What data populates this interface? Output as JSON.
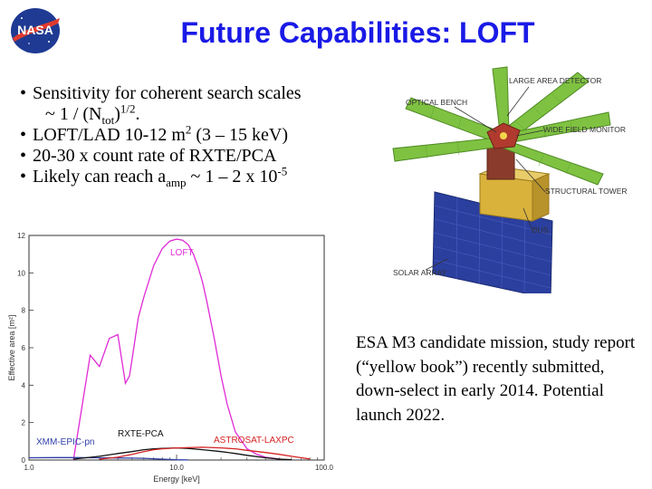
{
  "slide": {
    "title": "Future Capabilities: LOFT",
    "logo_text": "NASA",
    "bullets": [
      {
        "parts": {
          "a": "Sensitivity for coherent search scales",
          "b": "~ 1 / (N",
          "sub": "tot",
          "c": ")",
          "sup": "1/2",
          "d": "."
        }
      },
      {
        "parts": {
          "a": "LOFT/LAD 10-12 m",
          "sup": "2",
          "b": " (3 – 15 keV)"
        }
      },
      {
        "parts": {
          "a": "20-30 x count rate of RXTE/PCA"
        }
      },
      {
        "parts": {
          "a": "Likely can reach a",
          "sub": "amp",
          "b": " ~ 1 – 2 x 10",
          "sup": "-5"
        }
      }
    ],
    "caption": "ESA M3 candidate mission, study report (“yellow book”) recently submitted, down-select in early 2014.  Potential launch 2022."
  },
  "spacecraft": {
    "labels": {
      "lad": "LARGE AREA DETECTOR",
      "optical_bench": "OPTICAL BENCH",
      "wfm": "WIDE FIELD MONITOR",
      "tower": "STRUCTURAL TOWER",
      "bus": "BUS",
      "solar": "SOLAR ARRAY"
    },
    "colors": {
      "panel": "#7fc241",
      "tower": "#8a3b2c",
      "bus": "#d9b23c",
      "solar": "#2b3f9e"
    }
  },
  "chart_data": {
    "type": "line",
    "xlabel": "Energy  [keV]",
    "ylabel": "Effective area  [m²]",
    "xscale": "log",
    "xlim": [
      1,
      100
    ],
    "ylim": [
      0,
      12
    ],
    "xticks": [
      "1.0",
      "10.0",
      "100.0"
    ],
    "yticks": [
      "0",
      "2",
      "4",
      "6",
      "8",
      "10",
      "12"
    ],
    "series": [
      {
        "name": "LOFT",
        "color": "#e02ad6",
        "x": [
          2,
          2.3,
          2.6,
          3,
          3.5,
          4,
          4.5,
          4.8,
          5,
          5.5,
          6,
          7,
          8,
          9,
          10,
          11,
          12,
          13,
          14,
          15,
          16,
          18,
          20,
          22,
          25,
          30,
          35,
          40,
          50
        ],
        "y": [
          0,
          3,
          5.6,
          5.0,
          6.5,
          6.7,
          4.1,
          4.5,
          5.4,
          7.6,
          8.7,
          10.4,
          11.3,
          11.7,
          11.8,
          11.75,
          11.5,
          11.0,
          10.3,
          9.5,
          8.5,
          6.5,
          4.5,
          3.0,
          1.5,
          0.6,
          0.3,
          0.15,
          0.05
        ]
      },
      {
        "name": "XMM-EPIC-pn",
        "color": "#2f3fa8",
        "x": [
          1,
          1.5,
          2,
          3,
          4,
          5,
          6,
          7,
          8,
          9,
          10,
          12
        ],
        "y": [
          0.12,
          0.13,
          0.13,
          0.12,
          0.11,
          0.1,
          0.09,
          0.07,
          0.05,
          0.03,
          0.015,
          0.005
        ]
      },
      {
        "name": "RXTE-PCA",
        "color": "#111111",
        "x": [
          2,
          3,
          4,
          5,
          6,
          7,
          8,
          10,
          12,
          15,
          20,
          25,
          30,
          40,
          50,
          60
        ],
        "y": [
          0.05,
          0.2,
          0.35,
          0.45,
          0.55,
          0.6,
          0.62,
          0.65,
          0.62,
          0.55,
          0.45,
          0.35,
          0.25,
          0.12,
          0.05,
          0.02
        ]
      },
      {
        "name": "ASTROSAT-LAXPC",
        "color": "#d42222",
        "x": [
          3,
          4,
          5,
          6,
          7,
          8,
          10,
          15,
          20,
          25,
          30,
          40,
          50,
          60,
          70,
          80
        ],
        "y": [
          0.05,
          0.15,
          0.3,
          0.45,
          0.55,
          0.6,
          0.65,
          0.68,
          0.65,
          0.6,
          0.52,
          0.4,
          0.3,
          0.2,
          0.12,
          0.06
        ]
      }
    ]
  }
}
